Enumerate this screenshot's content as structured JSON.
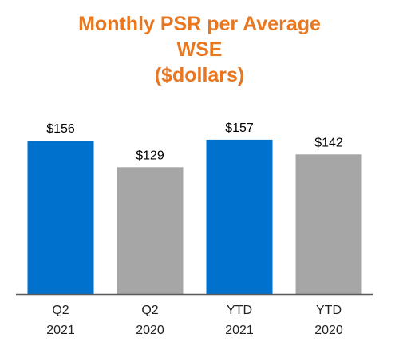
{
  "chart_data": {
    "type": "bar",
    "title_lines": [
      "Monthly PSR per Average",
      "WSE",
      "($dollars)"
    ],
    "categories": [
      [
        "Q2",
        "2021"
      ],
      [
        "Q2",
        "2020"
      ],
      [
        "YTD",
        "2021"
      ],
      [
        "YTD",
        "2020"
      ]
    ],
    "values": [
      156,
      129,
      157,
      142
    ],
    "value_labels": [
      "$156",
      "$129",
      "$157",
      "$142"
    ],
    "bar_colors": [
      "#0072ce",
      "#a6a6a6",
      "#0072ce",
      "#a6a6a6"
    ],
    "ylim": [
      0,
      170
    ],
    "grid": false,
    "legend": "none"
  },
  "colors": {
    "title": "#e87722",
    "current_period": "#0072ce",
    "prior_period": "#a6a6a6",
    "axis": "#595959"
  }
}
